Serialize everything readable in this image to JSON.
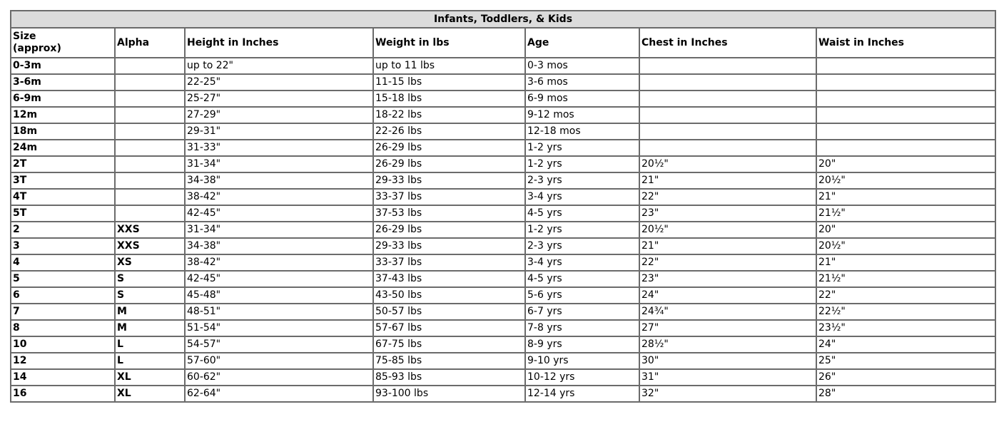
{
  "title": "Infants, Toddlers, & Kids",
  "headers": [
    "Size\n(approx)",
    "Alpha",
    "Height in Inches",
    "Weight in lbs",
    "Age",
    "Chest in Inches",
    "Waist in Inches"
  ],
  "rows": [
    [
      "0-3m",
      "",
      "up to 22\"",
      "up to 11 lbs",
      "0-3 mos",
      "",
      ""
    ],
    [
      "3-6m",
      "",
      "22-25\"",
      "11-15 lbs",
      "3-6 mos",
      "",
      ""
    ],
    [
      "6-9m",
      "",
      "25-27\"",
      "15-18 lbs",
      "6-9 mos",
      "",
      ""
    ],
    [
      "12m",
      "",
      "27-29\"",
      "18-22 lbs",
      "9-12 mos",
      "",
      ""
    ],
    [
      "18m",
      "",
      "29-31\"",
      "22-26 lbs",
      "12-18 mos",
      "",
      ""
    ],
    [
      "24m",
      "",
      "31-33\"",
      "26-29 lbs",
      "1-2 yrs",
      "",
      ""
    ],
    [
      "2T",
      "",
      "31-34\"",
      "26-29 lbs",
      "1-2 yrs",
      "20½\"",
      "20\""
    ],
    [
      "3T",
      "",
      "34-38\"",
      "29-33 lbs",
      "2-3 yrs",
      "21\"",
      "20½\""
    ],
    [
      "4T",
      "",
      "38-42\"",
      "33-37 lbs",
      "3-4 yrs",
      "22\"",
      "21\""
    ],
    [
      "5T",
      "",
      "42-45\"",
      "37-53 lbs",
      "4-5 yrs",
      "23\"",
      "21½\""
    ],
    [
      "2",
      "XXS",
      "31-34\"",
      "26-29 lbs",
      "1-2 yrs",
      "20½\"",
      "20\""
    ],
    [
      "3",
      "XXS",
      "34-38\"",
      "29-33 lbs",
      "2-3 yrs",
      "21\"",
      "20½\""
    ],
    [
      "4",
      "XS",
      "38-42\"",
      "33-37 lbs",
      "3-4 yrs",
      "22\"",
      "21\""
    ],
    [
      "5",
      "S",
      "42-45\"",
      "37-43 lbs",
      "4-5 yrs",
      "23\"",
      "21½\""
    ],
    [
      "6",
      "S",
      "45-48\"",
      "43-50 lbs",
      "5-6 yrs",
      "24\"",
      "22\""
    ],
    [
      "7",
      "M",
      "48-51\"",
      "50-57 lbs",
      "6-7 yrs",
      "24¾\"",
      "22½\""
    ],
    [
      "8",
      "M",
      "51-54\"",
      "57-67 lbs",
      "7-8 yrs",
      "27\"",
      "23½\""
    ],
    [
      "10",
      "L",
      "54-57\"",
      "67-75 lbs",
      "8-9 yrs",
      "28½\"",
      "24\""
    ],
    [
      "12",
      "L",
      "57-60\"",
      "75-85 lbs",
      "9-10 yrs",
      "30\"",
      "25\""
    ],
    [
      "14",
      "XL",
      "60-62\"",
      "85-93 lbs",
      "10-12 yrs",
      "31\"",
      "26\""
    ],
    [
      "16",
      "XL",
      "62-64\"",
      "93-100 lbs",
      "12-14 yrs",
      "32\"",
      "28\""
    ]
  ]
}
